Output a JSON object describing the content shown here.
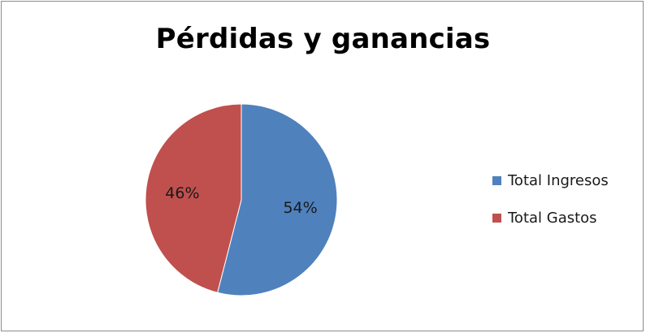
{
  "chart_data": {
    "type": "pie",
    "title": "Pérdidas y ganancias",
    "slices": [
      {
        "label": "Total Ingresos",
        "value": 54,
        "display": "54%",
        "color": "#4f81bd"
      },
      {
        "label": "Total Gastos",
        "value": 46,
        "display": "46%",
        "color": "#c0504d"
      }
    ],
    "legend_position": "right"
  }
}
